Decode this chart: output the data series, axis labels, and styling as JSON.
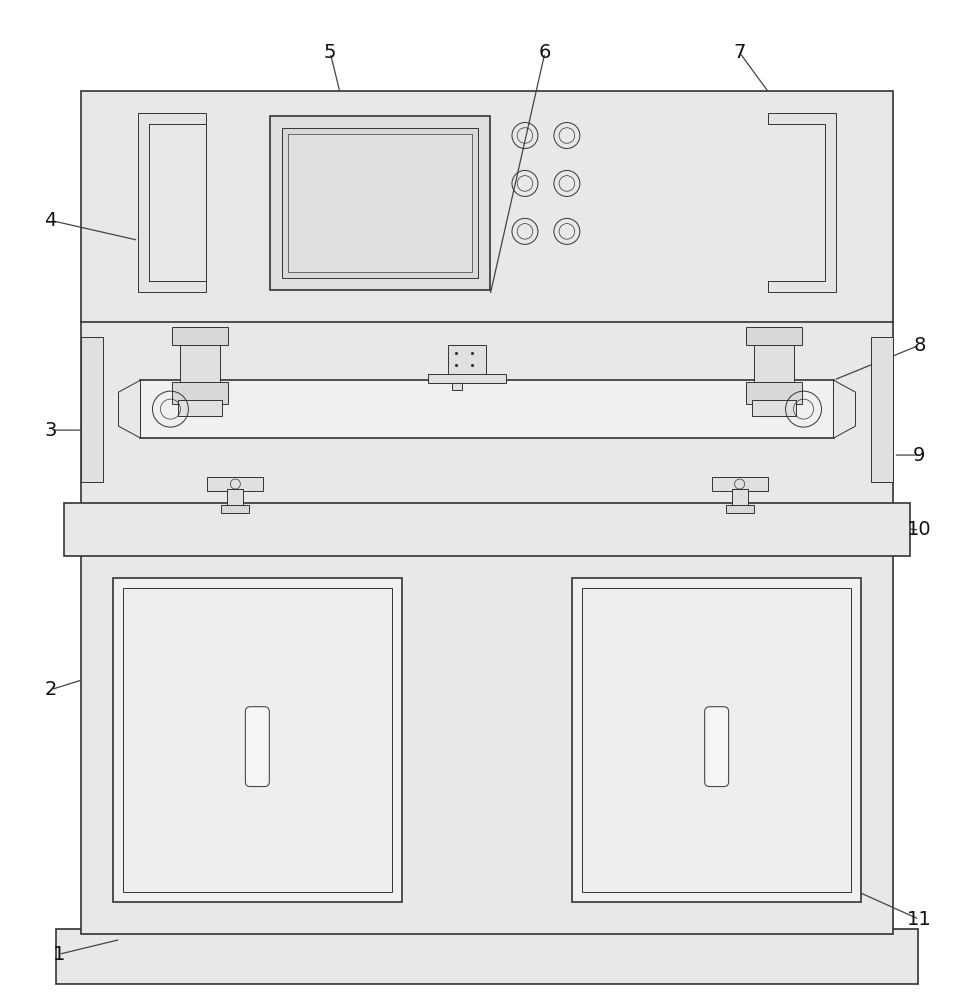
{
  "bg_color": "#f0f0f0",
  "line_color": "#333333",
  "dot_color": "#b0b0b0",
  "cross_color": "#666666",
  "hatch_color": "#aaaaaa",
  "white": "#ffffff",
  "light_gray": "#e8e8e8",
  "mid_gray": "#d0d0d0"
}
